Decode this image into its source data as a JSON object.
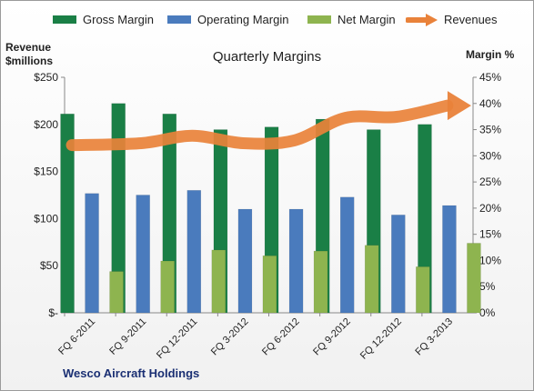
{
  "chart_data": {
    "type": "bar",
    "title": "Quarterly Margins",
    "ylabel_left_line1": "Revenue",
    "ylabel_left_line2": "$millions",
    "ylabel_right": "Margin %",
    "footer": "Wesco Aircraft Holdings",
    "categories": [
      "FQ 6-2011",
      "FQ 9-2011",
      "FQ 12-2011",
      "FQ 3-2012",
      "FQ 6-2012",
      "FQ 9-2012",
      "FQ 12-2012",
      "FQ 3-2013"
    ],
    "series": [
      {
        "name": "Gross Margin",
        "axis": "right",
        "color": "#1a7f46",
        "values": [
          38.0,
          40.0,
          38.0,
          35.0,
          35.5,
          37.0,
          35.0,
          36.0
        ]
      },
      {
        "name": "Operating Margin",
        "axis": "right",
        "color": "#4a7bbd",
        "values": [
          22.8,
          22.5,
          23.4,
          19.8,
          19.8,
          22.1,
          18.7,
          20.5
        ]
      },
      {
        "name": "Net Margin",
        "axis": "right",
        "color": "#8eb44f",
        "values": [
          7.9,
          9.9,
          12.0,
          10.9,
          11.8,
          12.9,
          8.8,
          13.3
        ]
      },
      {
        "name": "Revenues",
        "axis": "left",
        "color": "#e9823a",
        "type": "line",
        "values": [
          178,
          180,
          188,
          180,
          183,
          207,
          208,
          220
        ]
      }
    ],
    "y_left": {
      "min": 0,
      "max": 250,
      "step": 50,
      "ticks": [
        "$-",
        "$50",
        "$100",
        "$150",
        "$200",
        "$250"
      ]
    },
    "y_right": {
      "min": 0,
      "max": 45,
      "step": 5,
      "ticks": [
        "0%",
        "5%",
        "10%",
        "15%",
        "20%",
        "25%",
        "30%",
        "35%",
        "40%",
        "45%"
      ]
    },
    "grid": false,
    "legend_position": "top"
  }
}
